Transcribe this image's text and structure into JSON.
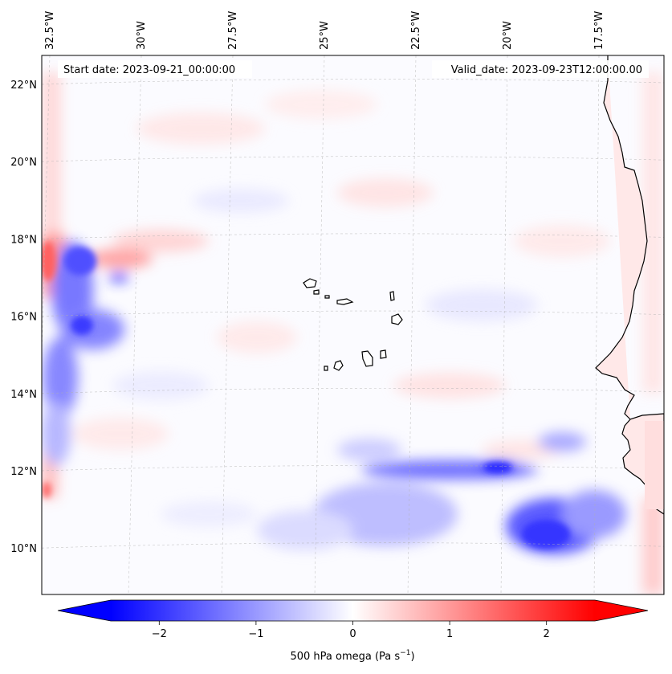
{
  "map": {
    "start_date_label": "Start date: 2023-09-21_00:00:00",
    "valid_date_label": "Valid_date: 2023-09-23T12:00:00.00",
    "lon_ticks": [
      {
        "label": "32.5°W",
        "value": -32.5
      },
      {
        "label": "30°W",
        "value": -30
      },
      {
        "label": "27.5°W",
        "value": -27.5
      },
      {
        "label": "25°W",
        "value": -25
      },
      {
        "label": "22.5°W",
        "value": -22.5
      },
      {
        "label": "20°W",
        "value": -20
      },
      {
        "label": "17.5°W",
        "value": -17.5
      }
    ],
    "lat_ticks": [
      {
        "label": "22°N",
        "value": 22
      },
      {
        "label": "20°N",
        "value": 20
      },
      {
        "label": "18°N",
        "value": 18
      },
      {
        "label": "16°N",
        "value": 16
      },
      {
        "label": "14°N",
        "value": 14
      },
      {
        "label": "12°N",
        "value": 12
      },
      {
        "label": "10°N",
        "value": 10
      }
    ],
    "colorbar": {
      "ticks": [
        {
          "label": "−2",
          "value": -2
        },
        {
          "label": "−1",
          "value": -1
        },
        {
          "label": "0",
          "value": 0
        },
        {
          "label": "1",
          "value": 1
        },
        {
          "label": "2",
          "value": 2
        }
      ],
      "range": [
        -2.5,
        2.5
      ],
      "title": "500 hPa omega (Pa s",
      "title_exp": "−1",
      "title_close": ")",
      "colors": {
        "negative": "#0000ff",
        "zero": "#ffffff",
        "positive": "#ff0000"
      }
    },
    "features": [
      "cape-verde-islands",
      "west-africa-coastline"
    ]
  }
}
